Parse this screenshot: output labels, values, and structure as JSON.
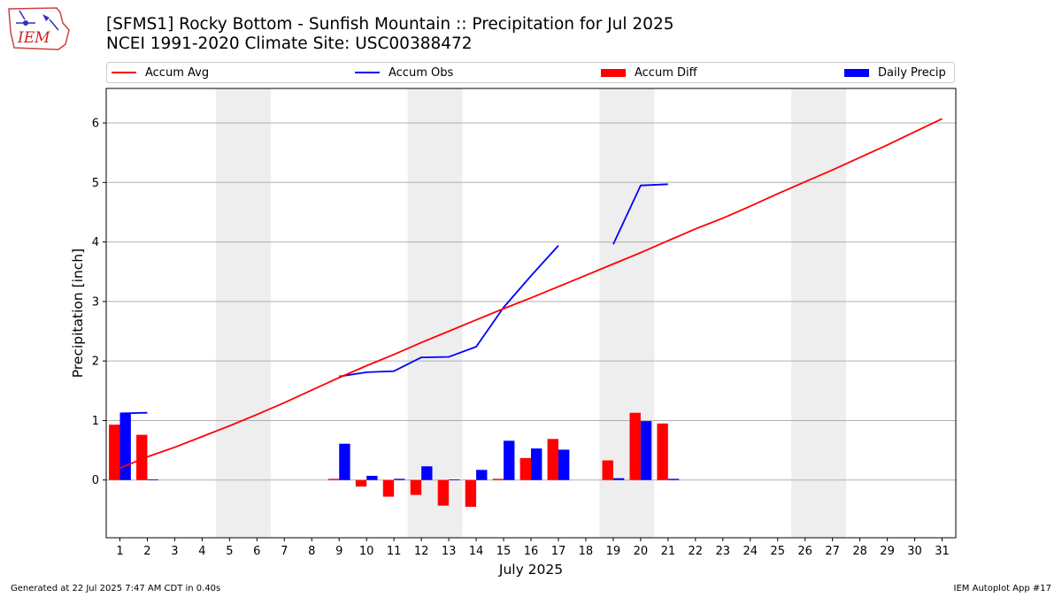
{
  "header": {
    "logo_text": "IEM",
    "title_line1": "[SFMS1] Rocky Bottom - Sunfish Mountain :: Precipitation for Jul 2025",
    "title_line2": "NCEI 1991-2020 Climate Site: USC00388472"
  },
  "legend": {
    "accum_avg": "Accum Avg",
    "accum_obs": "Accum Obs",
    "accum_diff": "Accum Diff",
    "daily_precip": "Daily Precip"
  },
  "footer": {
    "left": "Generated at 22 Jul 2025 7:47 AM CDT in 0.40s",
    "right": "IEM Autoplot App #17"
  },
  "colors": {
    "accum_avg": "#ff0000",
    "accum_obs": "#0000ff",
    "accum_diff": "#ff0000",
    "daily_precip": "#0000ff",
    "weekend_shade": "#eeeeee",
    "grid": "#b0b0b0"
  },
  "chart_data": {
    "type": "bar",
    "xlabel": "July 2025",
    "ylabel": "Precipitation [inch]",
    "xlim": [
      0.5,
      31.5
    ],
    "ylim": [
      -0.97,
      6.58
    ],
    "yticks": [
      0,
      1,
      2,
      3,
      4,
      5,
      6
    ],
    "x": [
      1,
      2,
      3,
      4,
      5,
      6,
      7,
      8,
      9,
      10,
      11,
      12,
      13,
      14,
      15,
      16,
      17,
      18,
      19,
      20,
      21,
      22,
      23,
      24,
      25,
      26,
      27,
      28,
      29,
      30,
      31
    ],
    "grid": "horizontal",
    "legend_position": "top",
    "weekend_shading": [
      [
        5,
        6
      ],
      [
        12,
        13
      ],
      [
        19,
        20
      ],
      [
        26,
        27
      ]
    ],
    "series": [
      {
        "name": "Accum Avg",
        "kind": "line",
        "values": [
          0.2,
          0.39,
          0.55,
          0.73,
          0.91,
          1.1,
          1.3,
          1.51,
          1.72,
          1.92,
          2.11,
          2.31,
          2.5,
          2.69,
          2.88,
          3.06,
          3.25,
          3.44,
          3.63,
          3.82,
          4.02,
          4.22,
          4.4,
          4.6,
          4.81,
          5.01,
          5.21,
          5.42,
          5.63,
          5.85,
          6.07
        ]
      },
      {
        "name": "Accum Obs",
        "kind": "line",
        "values": [
          1.12,
          1.13,
          null,
          null,
          null,
          null,
          null,
          null,
          1.74,
          1.81,
          1.83,
          2.06,
          2.07,
          2.24,
          2.9,
          3.43,
          3.94,
          null,
          3.96,
          4.95,
          4.97,
          null,
          null,
          null,
          null,
          null,
          null,
          null,
          null,
          null,
          null
        ]
      },
      {
        "name": "Accum Diff",
        "kind": "bar",
        "values": [
          0.93,
          0.76,
          null,
          null,
          null,
          null,
          null,
          null,
          0.02,
          -0.11,
          -0.28,
          -0.25,
          -0.43,
          -0.45,
          0.02,
          0.37,
          0.69,
          null,
          0.33,
          1.13,
          0.95,
          null,
          null,
          null,
          null,
          null,
          null,
          null,
          null,
          null,
          null
        ]
      },
      {
        "name": "Daily Precip",
        "kind": "bar",
        "values": [
          1.12,
          0.01,
          null,
          null,
          null,
          null,
          null,
          null,
          0.61,
          0.07,
          0.02,
          0.23,
          0.01,
          0.17,
          0.66,
          0.53,
          0.51,
          null,
          0.03,
          0.99,
          0.02,
          null,
          null,
          null,
          null,
          null,
          null,
          null,
          null,
          null,
          null
        ]
      }
    ]
  }
}
